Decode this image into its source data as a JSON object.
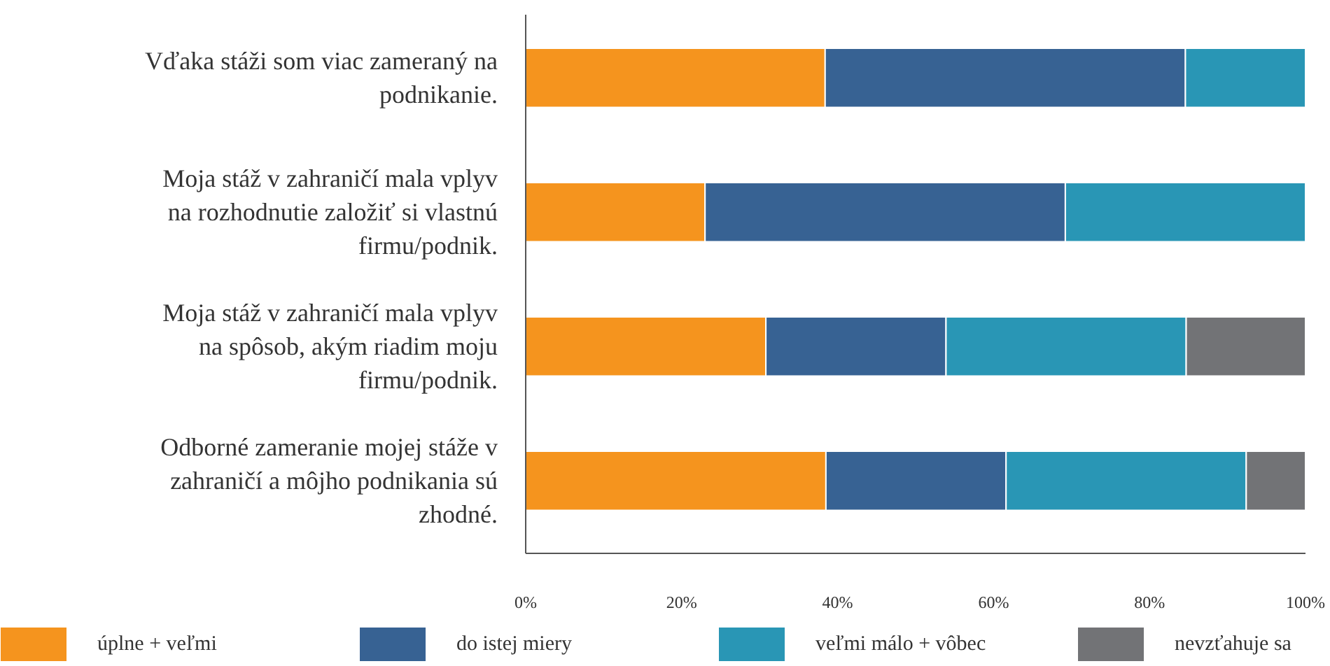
{
  "chart_data": {
    "type": "bar",
    "orientation": "horizontal",
    "stacked": true,
    "categories": [
      "Vďaka stáži som viac zameraný na podnikanie.",
      "Moja stáž v zahraničí mala vplyv na rozhodnutie založiť si vlastnú firmu/podnik.",
      "Moja stáž v zahraničí mala vplyv na spôsob, akým riadim moju firmu/podnik.",
      "Odborné zameranie mojej stáže v zahraničí a môjho podnikania sú zhodné."
    ],
    "series": [
      {
        "name": "úplne + veľmi",
        "color": "#f5941e",
        "values": [
          38.4,
          23.0,
          30.8,
          38.5
        ]
      },
      {
        "name": "do istej miery",
        "color": "#376293",
        "values": [
          46.2,
          46.2,
          23.1,
          23.1
        ]
      },
      {
        "name": "veľmi málo + vôbec",
        "color": "#2996b5",
        "values": [
          15.4,
          30.8,
          30.8,
          30.8
        ]
      },
      {
        "name": "nevzťahuje sa",
        "color": "#727376",
        "values": [
          null,
          null,
          15.3,
          7.6
        ]
      }
    ],
    "xlim": [
      0,
      100
    ],
    "xticks": [
      {
        "value": 0,
        "label": "0%"
      },
      {
        "value": 20,
        "label": "20%"
      },
      {
        "value": 40,
        "label": "40%"
      },
      {
        "value": 60,
        "label": "60%"
      },
      {
        "value": 80,
        "label": "80%"
      },
      {
        "value": 100,
        "label": "100%"
      }
    ],
    "grid": false,
    "legend": "bottom"
  }
}
